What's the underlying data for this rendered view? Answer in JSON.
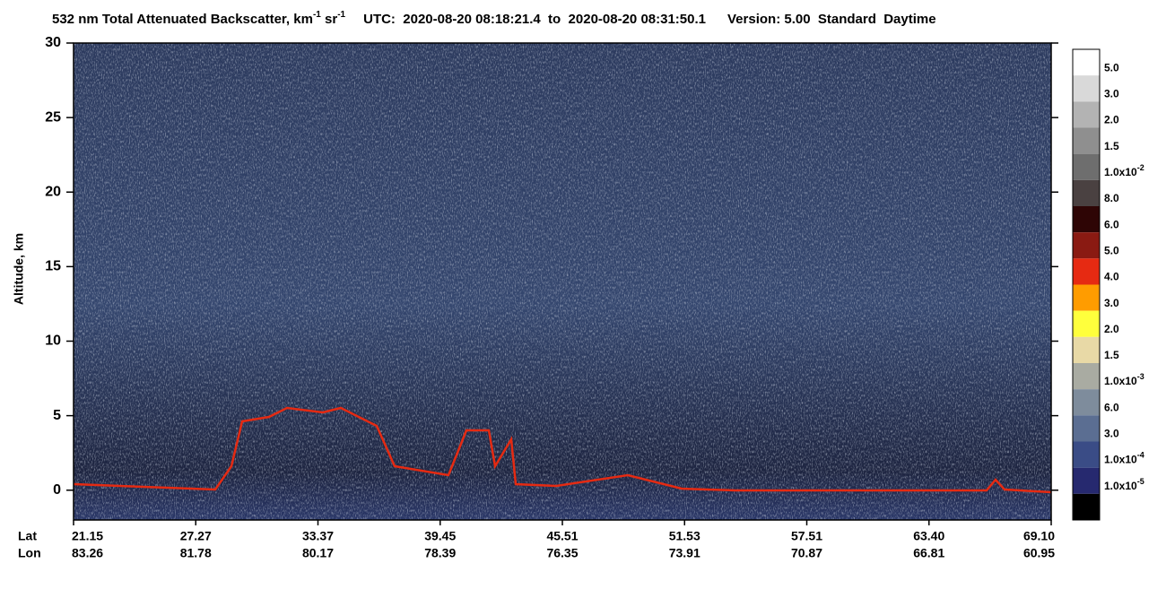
{
  "chart_data": {
    "type": "heatmap",
    "title": {
      "quantity": "532 nm Total Attenuated Backscatter, km",
      "sup1": "-1",
      "unit2": " sr",
      "sup2": "-1",
      "utc": "UTC:  2020-08-20 08:18:21.4  to  2020-08-20 08:31:50.1",
      "version": "Version: 5.00  Standard  Daytime"
    },
    "y_label": "Altitude, km",
    "ylim": [
      -2,
      30
    ],
    "yticks": [
      0,
      5,
      10,
      15,
      20,
      25,
      30
    ],
    "lat_label": "Lat",
    "lon_label": "Lon",
    "lat_ticks": [
      "21.15",
      "27.27",
      "33.37",
      "39.45",
      "45.51",
      "51.53",
      "57.51",
      "63.40",
      "69.10"
    ],
    "lon_ticks": [
      "83.26",
      "81.78",
      "80.17",
      "78.39",
      "76.35",
      "73.91",
      "70.87",
      "66.81",
      "60.95"
    ],
    "colorbar": {
      "colors": [
        "#ffffff",
        "#d9d9d9",
        "#b3b3b3",
        "#8f8f8f",
        "#6e6e6e",
        "#4a4141",
        "#2e0505",
        "#8a1a12",
        "#e62a12",
        "#ff9c00",
        "#ffff3c",
        "#e8d9a6",
        "#a9aba2",
        "#7e8c9c",
        "#5b6e92",
        "#3a4c86",
        "#26296f",
        "#000000"
      ],
      "labels": [
        "5.0",
        "3.0",
        "2.0",
        "1.5",
        {
          "base": "1.0x10",
          "sup": "-2"
        },
        "8.0",
        "6.0",
        "5.0",
        "4.0",
        "3.0",
        "2.0",
        "1.5",
        {
          "base": "1.0x10",
          "sup": "-3"
        },
        "6.0",
        "3.0",
        {
          "base": "1.0x10",
          "sup": "-4"
        },
        {
          "base": "1.0x10",
          "sup": "-5"
        }
      ]
    }
  }
}
